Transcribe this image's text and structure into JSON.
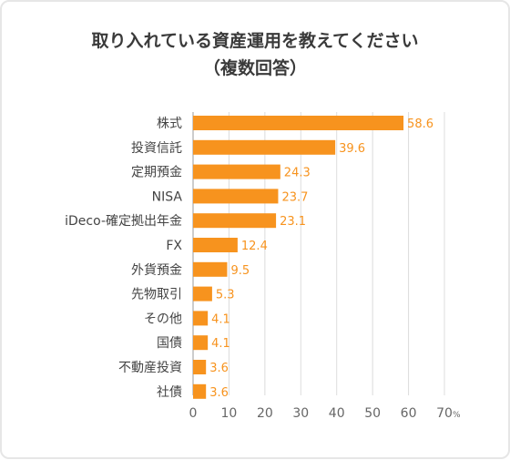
{
  "title_line1": "取り入れている資産運用を教えてください",
  "title_line2": "（複数回答）",
  "chart_data": {
    "type": "bar",
    "orientation": "horizontal",
    "categories": [
      "株式",
      "投資信託",
      "定期預金",
      "NISA",
      "iDeco-確定拠出年金",
      "FX",
      "外貨預金",
      "先物取引",
      "その他",
      "国債",
      "不動産投資",
      "社債"
    ],
    "values": [
      58.6,
      39.6,
      24.3,
      23.7,
      23.1,
      12.4,
      9.5,
      5.3,
      4.1,
      4.1,
      3.6,
      3.6
    ],
    "value_labels": [
      "58.6",
      "39.6",
      "24.3",
      "23.7",
      "23.1",
      "12.4",
      "9.5",
      "5.3",
      "4.1",
      "4.1",
      "3.6",
      "3.6"
    ],
    "xlim": [
      0,
      70
    ],
    "xticks": [
      "0",
      "10",
      "20",
      "30",
      "40",
      "50",
      "60",
      "70"
    ],
    "x_unit": "%",
    "grid": true,
    "colors": {
      "bar": "#f7931e",
      "value_label": "#f7931e",
      "grid": "#dcdcdc",
      "text": "#444444"
    }
  }
}
